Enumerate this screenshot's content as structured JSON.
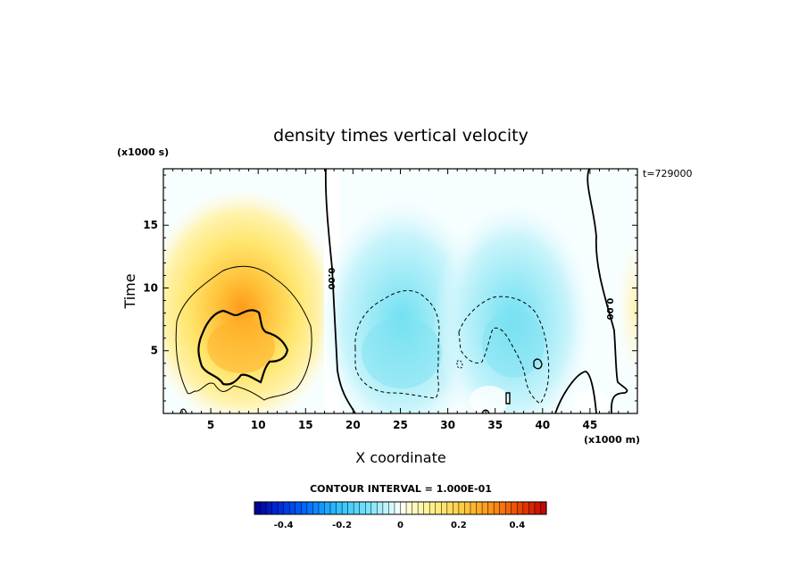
{
  "chart_data": {
    "type": "heatmap",
    "title": "density times vertical velocity",
    "xlabel": "X coordinate",
    "ylabel": "Time",
    "x_unit": "(x1000 m)",
    "y_unit": "(x1000 s)",
    "time_stamp": "t=729000",
    "xlim": [
      0,
      50
    ],
    "ylim": [
      0,
      19.5
    ],
    "x_ticks": [
      "5",
      "10",
      "15",
      "20",
      "25",
      "30",
      "35",
      "40",
      "45"
    ],
    "y_ticks": [
      "5",
      "10",
      "15"
    ],
    "contour_interval_text": "CONTOUR INTERVAL = 1.000E-01",
    "zero_contour_labels": [
      "0.00",
      "0.00"
    ],
    "colorbar": {
      "range": [
        -0.5,
        0.5
      ],
      "tick_labels": [
        "-0.4",
        "-0.2",
        "0",
        "0.2",
        "0.4"
      ],
      "tick_values": [
        -0.4,
        -0.2,
        0,
        0.2,
        0.4
      ]
    },
    "features": [
      {
        "kind": "positive",
        "center_x": 7.5,
        "center_y": 6,
        "peak": 0.35
      },
      {
        "kind": "negative",
        "center_x": 25,
        "center_y": 5,
        "peak": -0.18
      },
      {
        "kind": "negative",
        "center_x": 37.5,
        "center_y": 5,
        "peak": -0.2
      },
      {
        "kind": "positive",
        "center_x": 49.5,
        "center_y": 8,
        "peak": 0.05
      }
    ],
    "colors": {
      "positive_low": "#fffcd8",
      "positive_high": "#c82800",
      "negative_low": "#e6fbff",
      "negative_high": "#0000a0"
    }
  }
}
